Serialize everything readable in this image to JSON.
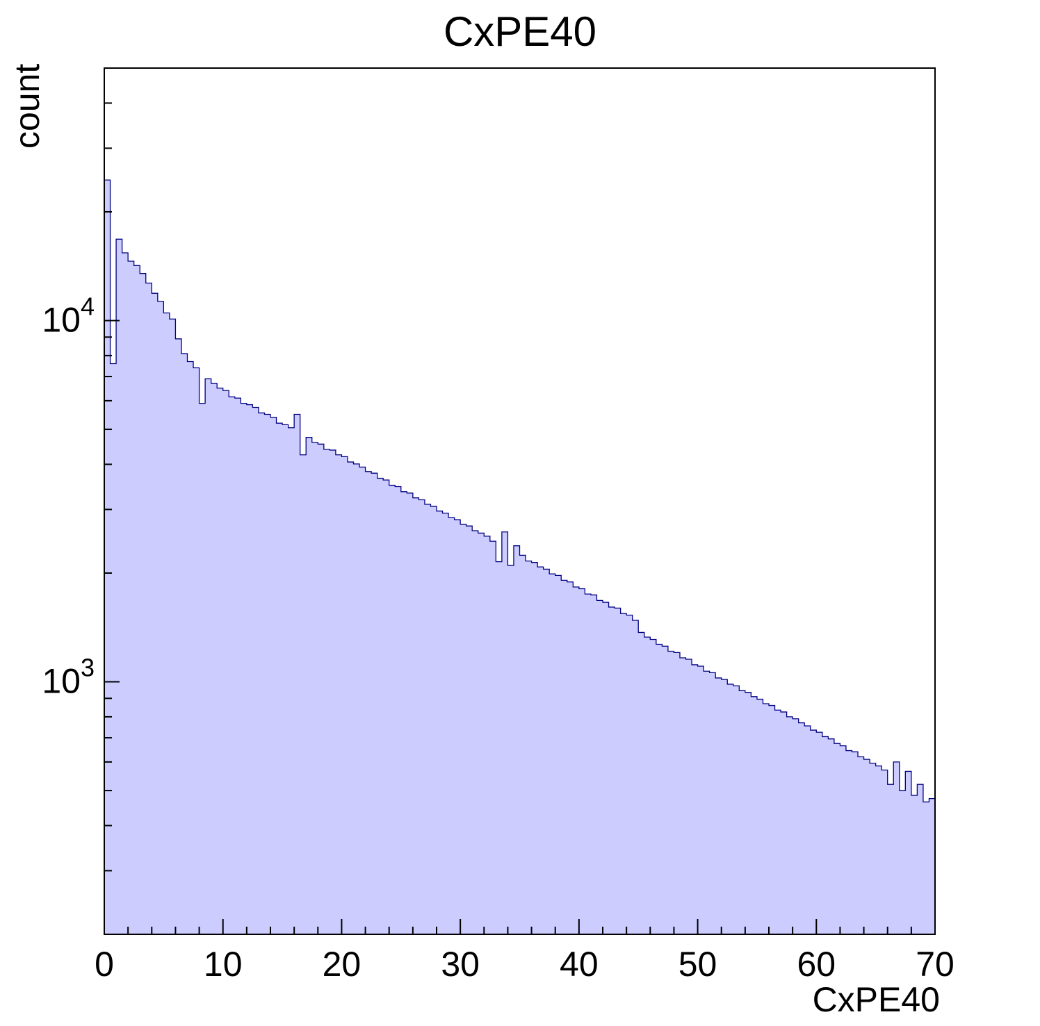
{
  "chart_data": {
    "type": "bar",
    "title": "CxPE40",
    "xlabel": "CxPE40",
    "ylabel": "count",
    "yscale": "log",
    "xlim": [
      0,
      70
    ],
    "ylim": [
      200,
      50000
    ],
    "x_start": 0,
    "bin_width": 0.5,
    "xticks": [
      0,
      10,
      20,
      30,
      40,
      50,
      60,
      70
    ],
    "x_minor_step": 2,
    "yticks_labeled": [
      1000,
      10000
    ],
    "legend": "none",
    "grid": false,
    "values": [
      24500,
      7600,
      16800,
      15400,
      14600,
      14200,
      13500,
      12700,
      11900,
      11300,
      10500,
      10100,
      8900,
      8100,
      7700,
      7400,
      5900,
      6900,
      6700,
      6500,
      6400,
      6150,
      6100,
      5900,
      5850,
      5750,
      5550,
      5500,
      5400,
      5200,
      5150,
      5050,
      5500,
      4250,
      4750,
      4600,
      4550,
      4400,
      4380,
      4250,
      4200,
      4060,
      4010,
      3930,
      3820,
      3780,
      3660,
      3620,
      3500,
      3470,
      3360,
      3330,
      3230,
      3190,
      3100,
      3060,
      2970,
      2930,
      2850,
      2810,
      2730,
      2700,
      2620,
      2580,
      2530,
      2450,
      2150,
      2600,
      2100,
      2380,
      2240,
      2160,
      2140,
      2080,
      2050,
      1990,
      1970,
      1910,
      1890,
      1830,
      1810,
      1750,
      1740,
      1680,
      1660,
      1610,
      1600,
      1545,
      1530,
      1480,
      1370,
      1330,
      1310,
      1270,
      1255,
      1215,
      1205,
      1165,
      1155,
      1115,
      1105,
      1070,
      1060,
      1025,
      1015,
      985,
      975,
      945,
      935,
      910,
      895,
      870,
      860,
      835,
      825,
      800,
      790,
      770,
      755,
      735,
      725,
      705,
      695,
      675,
      665,
      645,
      640,
      620,
      610,
      595,
      585,
      570,
      520,
      600,
      500,
      565,
      485,
      520,
      465,
      475
    ],
    "colors": {
      "fill": "#ccccff",
      "line": "#000080",
      "axis": "#000000",
      "background": "#ffffff"
    }
  }
}
